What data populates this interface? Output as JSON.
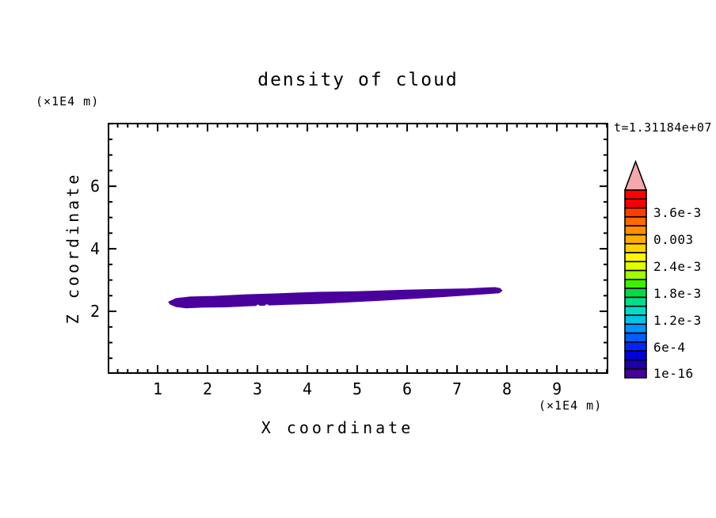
{
  "title": "density of cloud",
  "time_label": "t=1.31184e+07",
  "axes": {
    "x_title": "X coordinate",
    "x_unit": "(×1E4 m)",
    "y_title": "Z coordinate",
    "y_unit": "(×1E4 m)"
  },
  "chart_data": {
    "type": "heatmap",
    "title": "density of cloud",
    "annotation": "t=1.31184e+07",
    "xlabel": "X coordinate",
    "ylabel": "Z coordinate",
    "x_unit": "(×1E4 m)",
    "y_unit": "(×1E4 m)",
    "x_range": [
      0,
      10.03
    ],
    "y_range": [
      0,
      8.03
    ],
    "x_major_ticks": [
      1,
      2,
      3,
      4,
      5,
      6,
      7,
      8,
      9
    ],
    "x_minor_step": 0.2,
    "y_major_ticks": [
      2,
      4,
      6
    ],
    "y_minor_step": 0.5,
    "grid": false,
    "cloud_region": {
      "description": "single filled density contour at lowest level (1e-16), elongated thin cloud",
      "fill_color": "#4a009c",
      "x_extent": [
        1.22,
        7.9
      ],
      "y_extent": [
        2.11,
        2.76
      ],
      "outline_points": [
        [
          1.22,
          2.3
        ],
        [
          1.37,
          2.41
        ],
        [
          1.65,
          2.46
        ],
        [
          2.13,
          2.48
        ],
        [
          2.76,
          2.53
        ],
        [
          3.4,
          2.56
        ],
        [
          4.19,
          2.61
        ],
        [
          4.98,
          2.63
        ],
        [
          5.78,
          2.67
        ],
        [
          6.57,
          2.7
        ],
        [
          7.21,
          2.72
        ],
        [
          7.6,
          2.75
        ],
        [
          7.76,
          2.76
        ],
        [
          7.86,
          2.73
        ],
        [
          7.9,
          2.66
        ],
        [
          7.84,
          2.59
        ],
        [
          7.6,
          2.56
        ],
        [
          7.21,
          2.52
        ],
        [
          6.73,
          2.47
        ],
        [
          6.1,
          2.41
        ],
        [
          5.46,
          2.35
        ],
        [
          4.83,
          2.3
        ],
        [
          4.19,
          2.25
        ],
        [
          3.56,
          2.22
        ],
        [
          2.92,
          2.18
        ],
        [
          2.37,
          2.14
        ],
        [
          1.89,
          2.13
        ],
        [
          1.57,
          2.11
        ],
        [
          1.37,
          2.15
        ],
        [
          1.25,
          2.23
        ]
      ],
      "holes": [
        {
          "x": 3.19,
          "y": 2.155,
          "r": 0.05
        },
        {
          "x": 3.43,
          "y": 2.135,
          "r": 0.04
        },
        {
          "x": 3.01,
          "y": 2.165,
          "r": 0.03
        }
      ]
    },
    "colorbar": {
      "arrow_color": "#f5a8ab",
      "outline_color": "#000000",
      "segment_colors_top_to_bottom": [
        "#ff0000",
        "#f80000",
        "#ff3c00",
        "#ff6900",
        "#ff8e00",
        "#ffae00",
        "#ffd200",
        "#fff600",
        "#dfff00",
        "#9dff00",
        "#3cf000",
        "#00dc46",
        "#00de8d",
        "#00dcc8",
        "#00c3e8",
        "#0092ff",
        "#005eff",
        "#0026ff",
        "#0000dc",
        "#1e00aa",
        "#46009c"
      ],
      "labels": [
        {
          "text": "3.6e-3",
          "segment": 3
        },
        {
          "text": "0.003",
          "segment": 6
        },
        {
          "text": "2.4e-3",
          "segment": 9
        },
        {
          "text": "1.8e-3",
          "segment": 12
        },
        {
          "text": "1.2e-3",
          "segment": 15
        },
        {
          "text": "6e-4",
          "segment": 18
        },
        {
          "text": "1e-16",
          "segment": 21
        }
      ]
    }
  }
}
